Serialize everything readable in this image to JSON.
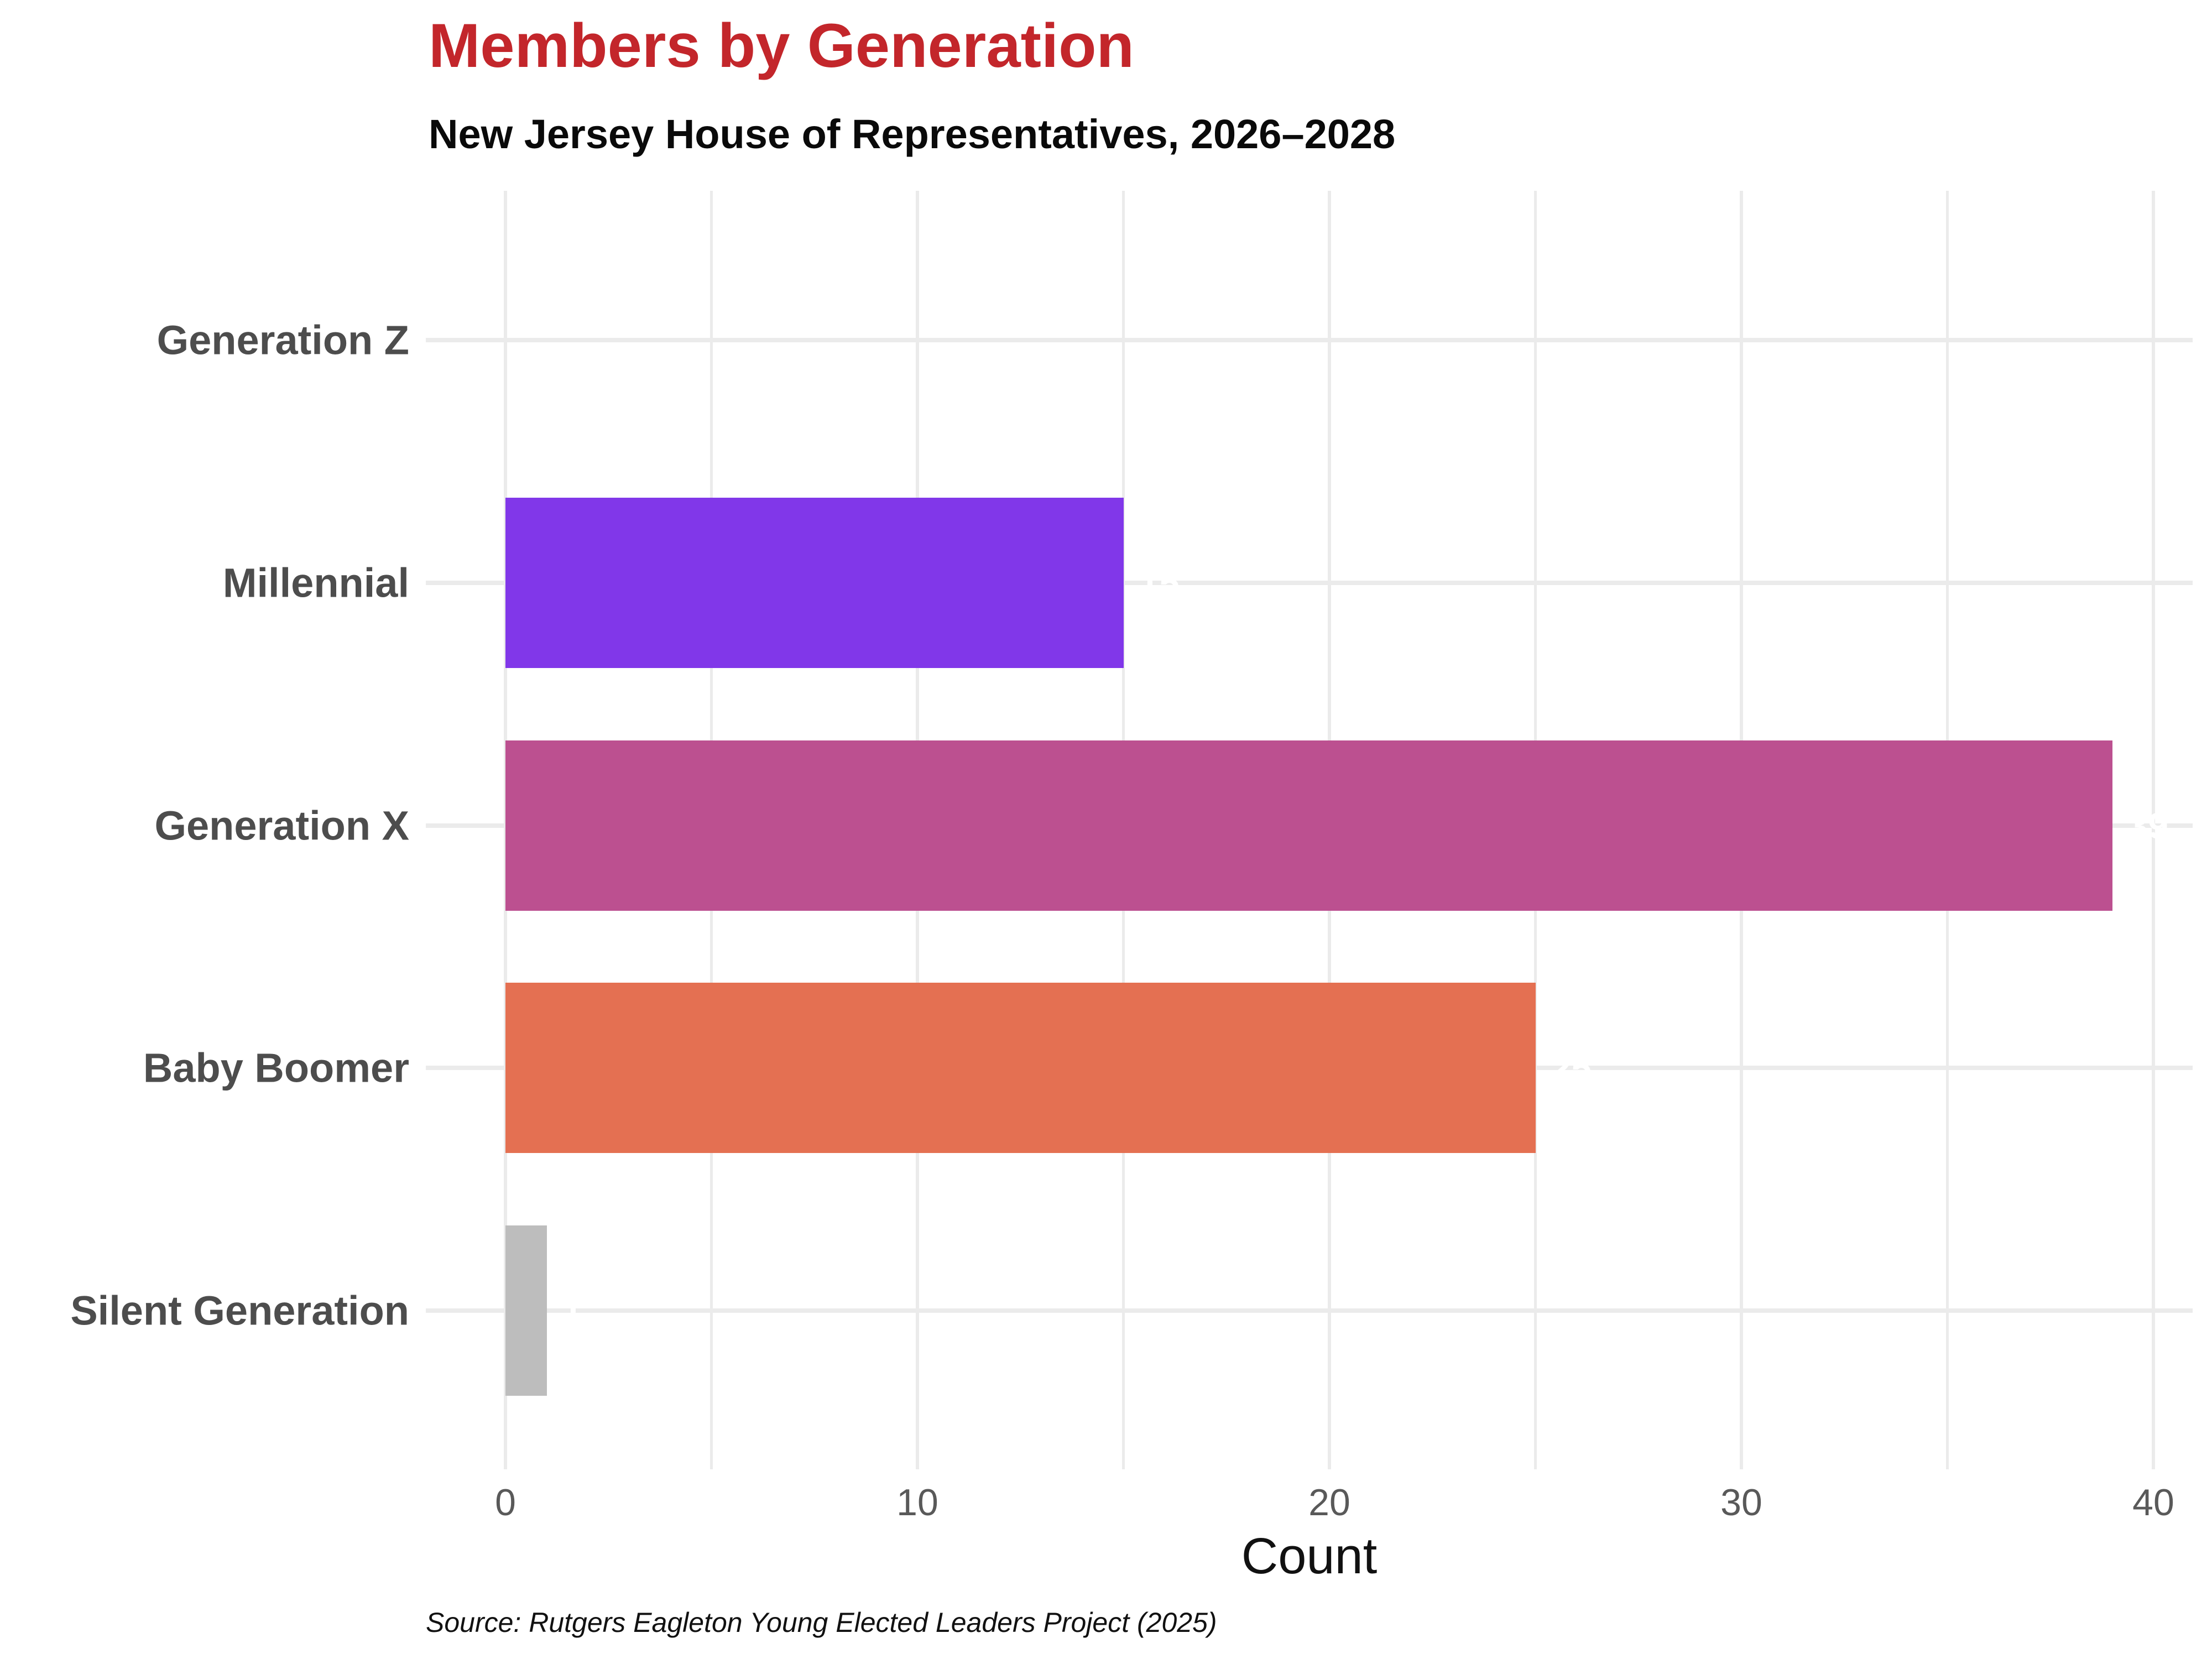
{
  "title": {
    "text": "Members by Generation",
    "color": "#c3262b"
  },
  "subtitle": "New Jersey House of Representatives, 2026–2028",
  "caption": "Source: Rutgers Eagleton Young Elected Leaders Project (2025)",
  "x_axis": {
    "label": "Count",
    "major_ticks": [
      0,
      10,
      20,
      30,
      40
    ],
    "minor_ticks": [
      5,
      15,
      25,
      35
    ]
  },
  "colors": {
    "gridline": "#ebebeb",
    "category_label": "#4d4d4d",
    "tick_label": "#595959",
    "value_label": "#ffffff",
    "background": "#ffffff"
  },
  "chart_data": {
    "type": "bar",
    "orientation": "horizontal",
    "title": "Members by Generation",
    "subtitle": "New Jersey House of Representatives, 2026–2028",
    "xlabel": "Count",
    "ylabel": "",
    "xlim": [
      0,
      41
    ],
    "grid": true,
    "legend": false,
    "categories": [
      "Generation Z",
      "Millennial",
      "Generation X",
      "Baby Boomer",
      "Silent Generation"
    ],
    "values": [
      0,
      15,
      39,
      25,
      1
    ],
    "bar_colors": [
      null,
      "#8137e9",
      "#bc5090",
      "#e47052",
      "#bdbdbd"
    ],
    "value_labels": [
      "",
      "15",
      "39",
      "25",
      "1"
    ]
  }
}
